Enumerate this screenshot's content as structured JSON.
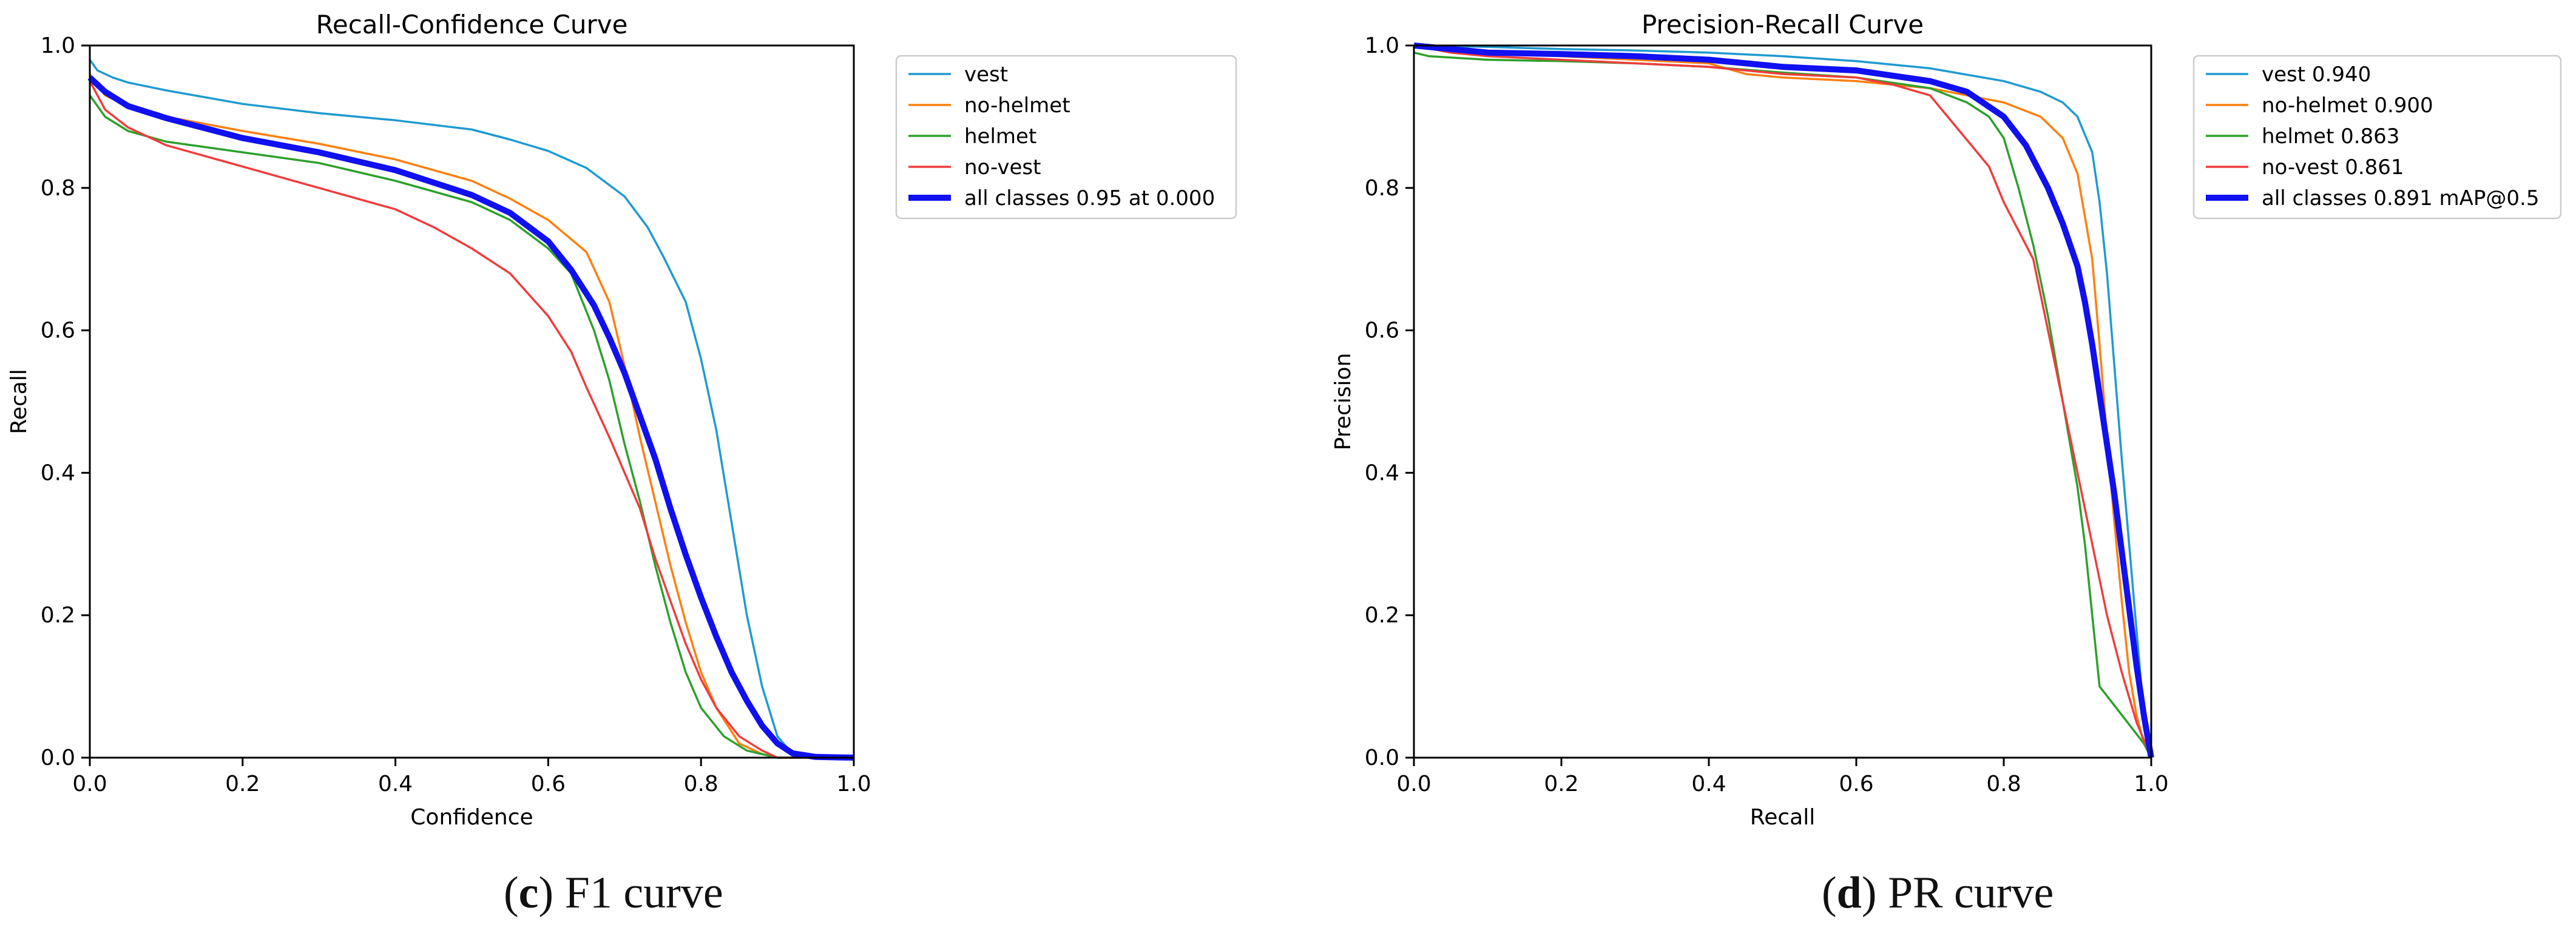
{
  "chart_data": [
    {
      "type": "line",
      "panel": "c",
      "title": "Recall-Confidence Curve",
      "xlabel": "Confidence",
      "ylabel": "Recall",
      "xlim": [
        0,
        1
      ],
      "ylim": [
        0,
        1
      ],
      "xticks": [
        "0.0",
        "0.2",
        "0.4",
        "0.6",
        "0.8",
        "1.0"
      ],
      "yticks": [
        "0.0",
        "0.2",
        "0.4",
        "0.6",
        "0.8",
        "1.0"
      ],
      "grid": false,
      "legend_position": "outside-right",
      "series": [
        {
          "name": "vest",
          "color": "#1f9ad0",
          "bold": false,
          "x": [
            0,
            0.01,
            0.03,
            0.05,
            0.1,
            0.2,
            0.3,
            0.4,
            0.5,
            0.55,
            0.6,
            0.65,
            0.7,
            0.73,
            0.75,
            0.78,
            0.8,
            0.82,
            0.84,
            0.86,
            0.88,
            0.9,
            0.92,
            0.95,
            1.0
          ],
          "y": [
            0.98,
            0.965,
            0.955,
            0.948,
            0.937,
            0.918,
            0.905,
            0.895,
            0.882,
            0.868,
            0.852,
            0.828,
            0.788,
            0.745,
            0.705,
            0.64,
            0.56,
            0.46,
            0.33,
            0.2,
            0.1,
            0.03,
            0.005,
            0.0,
            0.0
          ]
        },
        {
          "name": "no-helmet",
          "color": "#ff7f0e",
          "bold": false,
          "x": [
            0,
            0.02,
            0.05,
            0.1,
            0.2,
            0.3,
            0.4,
            0.5,
            0.55,
            0.6,
            0.65,
            0.68,
            0.7,
            0.72,
            0.74,
            0.76,
            0.78,
            0.8,
            0.82,
            0.85,
            0.88,
            0.9,
            1.0
          ],
          "y": [
            0.96,
            0.93,
            0.915,
            0.9,
            0.88,
            0.862,
            0.84,
            0.81,
            0.785,
            0.755,
            0.71,
            0.64,
            0.55,
            0.45,
            0.36,
            0.27,
            0.19,
            0.12,
            0.07,
            0.02,
            0.005,
            0.0,
            0.0
          ]
        },
        {
          "name": "helmet",
          "color": "#2ca02c",
          "bold": false,
          "x": [
            0,
            0.02,
            0.05,
            0.1,
            0.2,
            0.3,
            0.4,
            0.5,
            0.55,
            0.6,
            0.63,
            0.66,
            0.68,
            0.7,
            0.72,
            0.74,
            0.76,
            0.78,
            0.8,
            0.83,
            0.86,
            0.9,
            1.0
          ],
          "y": [
            0.93,
            0.9,
            0.88,
            0.865,
            0.85,
            0.835,
            0.81,
            0.78,
            0.755,
            0.715,
            0.68,
            0.6,
            0.53,
            0.44,
            0.36,
            0.27,
            0.19,
            0.12,
            0.07,
            0.03,
            0.01,
            0.0,
            0.0
          ]
        },
        {
          "name": "no-vest",
          "color": "#f03c3c",
          "bold": false,
          "x": [
            0,
            0.02,
            0.05,
            0.1,
            0.2,
            0.3,
            0.4,
            0.45,
            0.5,
            0.55,
            0.6,
            0.63,
            0.65,
            0.68,
            0.7,
            0.72,
            0.74,
            0.76,
            0.78,
            0.8,
            0.82,
            0.85,
            0.88,
            0.9,
            1.0
          ],
          "y": [
            0.95,
            0.91,
            0.885,
            0.86,
            0.83,
            0.8,
            0.77,
            0.745,
            0.715,
            0.68,
            0.62,
            0.57,
            0.52,
            0.45,
            0.4,
            0.35,
            0.28,
            0.22,
            0.16,
            0.11,
            0.07,
            0.03,
            0.01,
            0.0,
            0.0
          ]
        },
        {
          "name": "all classes 0.95 at 0.000",
          "color": "#1010f0",
          "bold": true,
          "x": [
            0,
            0.02,
            0.05,
            0.1,
            0.2,
            0.3,
            0.4,
            0.5,
            0.55,
            0.6,
            0.63,
            0.66,
            0.68,
            0.7,
            0.72,
            0.74,
            0.76,
            0.78,
            0.8,
            0.82,
            0.84,
            0.86,
            0.88,
            0.9,
            0.92,
            0.95,
            1.0
          ],
          "y": [
            0.955,
            0.935,
            0.915,
            0.898,
            0.87,
            0.85,
            0.825,
            0.79,
            0.765,
            0.725,
            0.685,
            0.635,
            0.59,
            0.54,
            0.48,
            0.42,
            0.35,
            0.285,
            0.225,
            0.17,
            0.12,
            0.08,
            0.045,
            0.02,
            0.006,
            0.001,
            0.0
          ]
        }
      ]
    },
    {
      "type": "line",
      "panel": "d",
      "title": "Precision-Recall Curve",
      "xlabel": "Recall",
      "ylabel": "Precision",
      "xlim": [
        0,
        1
      ],
      "ylim": [
        0,
        1
      ],
      "xticks": [
        "0.0",
        "0.2",
        "0.4",
        "0.6",
        "0.8",
        "1.0"
      ],
      "yticks": [
        "0.0",
        "0.2",
        "0.4",
        "0.6",
        "0.8",
        "1.0"
      ],
      "grid": false,
      "legend_position": "outside-right",
      "series": [
        {
          "name": "vest 0.940",
          "color": "#1f9ad0",
          "bold": false,
          "x": [
            0,
            0.1,
            0.2,
            0.3,
            0.4,
            0.5,
            0.6,
            0.7,
            0.8,
            0.85,
            0.88,
            0.9,
            0.92,
            0.93,
            0.94,
            0.95,
            0.96,
            0.97,
            0.98,
            0.99,
            1.0
          ],
          "y": [
            1.0,
            0.998,
            0.995,
            0.993,
            0.99,
            0.985,
            0.978,
            0.968,
            0.95,
            0.935,
            0.92,
            0.9,
            0.85,
            0.78,
            0.68,
            0.55,
            0.42,
            0.3,
            0.18,
            0.06,
            0.0
          ]
        },
        {
          "name": "no-helmet 0.900",
          "color": "#ff7f0e",
          "bold": false,
          "x": [
            0,
            0.05,
            0.1,
            0.2,
            0.3,
            0.4,
            0.45,
            0.5,
            0.6,
            0.7,
            0.75,
            0.8,
            0.85,
            0.88,
            0.9,
            0.92,
            0.93,
            0.94,
            0.95,
            0.96,
            0.97,
            0.98,
            0.99,
            1.0
          ],
          "y": [
            1.0,
            0.99,
            0.99,
            0.985,
            0.98,
            0.975,
            0.96,
            0.955,
            0.95,
            0.94,
            0.93,
            0.92,
            0.9,
            0.87,
            0.82,
            0.7,
            0.58,
            0.45,
            0.33,
            0.22,
            0.12,
            0.06,
            0.02,
            0.0
          ]
        },
        {
          "name": "helmet 0.863",
          "color": "#2ca02c",
          "bold": false,
          "x": [
            0,
            0.02,
            0.1,
            0.2,
            0.3,
            0.4,
            0.5,
            0.6,
            0.7,
            0.75,
            0.78,
            0.8,
            0.82,
            0.84,
            0.86,
            0.88,
            0.9,
            0.91,
            0.92,
            0.93,
            0.96,
            0.99,
            1.0
          ],
          "y": [
            0.99,
            0.985,
            0.98,
            0.978,
            0.975,
            0.97,
            0.962,
            0.955,
            0.94,
            0.92,
            0.9,
            0.87,
            0.8,
            0.72,
            0.62,
            0.5,
            0.38,
            0.3,
            0.2,
            0.1,
            0.06,
            0.02,
            0.0
          ]
        },
        {
          "name": "no-vest 0.861",
          "color": "#f03c3c",
          "bold": false,
          "x": [
            0,
            0.05,
            0.1,
            0.2,
            0.3,
            0.4,
            0.5,
            0.6,
            0.65,
            0.7,
            0.74,
            0.78,
            0.8,
            0.82,
            0.84,
            0.86,
            0.88,
            0.9,
            0.92,
            0.94,
            0.96,
            0.98,
            1.0
          ],
          "y": [
            1.0,
            0.99,
            0.985,
            0.98,
            0.975,
            0.97,
            0.96,
            0.955,
            0.945,
            0.93,
            0.88,
            0.83,
            0.78,
            0.74,
            0.7,
            0.6,
            0.5,
            0.4,
            0.3,
            0.2,
            0.12,
            0.05,
            0.0
          ]
        },
        {
          "name": "all classes 0.891 mAP@0.5",
          "color": "#1010f0",
          "bold": true,
          "x": [
            0,
            0.1,
            0.2,
            0.3,
            0.4,
            0.5,
            0.6,
            0.7,
            0.75,
            0.8,
            0.83,
            0.86,
            0.88,
            0.9,
            0.91,
            0.92,
            0.93,
            0.94,
            0.95,
            0.96,
            0.97,
            0.98,
            0.99,
            1.0
          ],
          "y": [
            1.0,
            0.99,
            0.988,
            0.985,
            0.98,
            0.97,
            0.965,
            0.95,
            0.935,
            0.9,
            0.86,
            0.8,
            0.75,
            0.69,
            0.64,
            0.58,
            0.51,
            0.44,
            0.37,
            0.29,
            0.21,
            0.13,
            0.06,
            0.0
          ]
        }
      ]
    }
  ],
  "captions": {
    "c_letter": "c",
    "c_text": " F1 curve",
    "d_letter": "d",
    "d_text": " PR curve"
  }
}
